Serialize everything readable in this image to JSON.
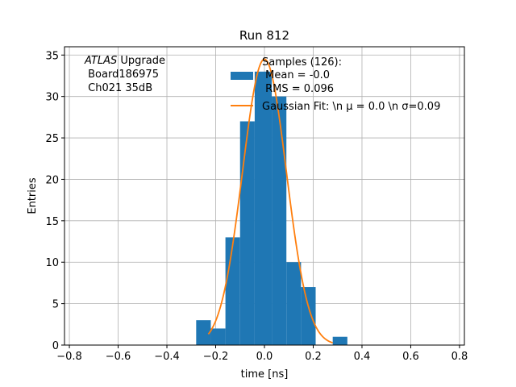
{
  "chart_data": {
    "type": "bar",
    "title": "Run 812",
    "xlabel": "time [ns]",
    "ylabel": "Entries",
    "xlim": [
      -0.82,
      0.82
    ],
    "ylim": [
      0,
      36
    ],
    "xticks": [
      "−0.8",
      "−0.6",
      "−0.4",
      "−0.2",
      "0.0",
      "0.2",
      "0.4",
      "0.6",
      "0.8"
    ],
    "xtick_values": [
      -0.8,
      -0.6,
      -0.4,
      -0.2,
      0.0,
      0.2,
      0.4,
      0.6,
      0.8
    ],
    "yticks": [
      "0",
      "5",
      "10",
      "15",
      "20",
      "25",
      "30",
      "35"
    ],
    "ytick_values": [
      0,
      5,
      10,
      15,
      20,
      25,
      30,
      35
    ],
    "grid": true,
    "annotation": {
      "line1_italic": "ATLAS",
      "line1_rest": " Upgrade",
      "line2": " Board186975",
      "line3": " Ch021 35dB"
    },
    "histogram": {
      "name": "Samples (126):\n Mean = -0.0\n RMS = 0.096",
      "legend_lines": [
        "Samples (126):",
        " Mean = -0.0",
        " RMS = 0.096"
      ],
      "color": "#1f77b4",
      "bins": [
        {
          "x0": -0.28,
          "x1": -0.22,
          "count": 3
        },
        {
          "x0": -0.22,
          "x1": -0.16,
          "count": 2
        },
        {
          "x0": -0.16,
          "x1": -0.1,
          "count": 13
        },
        {
          "x0": -0.1,
          "x1": -0.04,
          "count": 27
        },
        {
          "x0": -0.04,
          "x1": 0.03,
          "count": 33
        },
        {
          "x0": 0.03,
          "x1": 0.09,
          "count": 30
        },
        {
          "x0": 0.09,
          "x1": 0.15,
          "count": 10
        },
        {
          "x0": 0.15,
          "x1": 0.21,
          "count": 7
        },
        {
          "x0": 0.21,
          "x1": 0.28,
          "count": 0
        },
        {
          "x0": 0.28,
          "x1": 0.34,
          "count": 1
        }
      ]
    },
    "fit": {
      "name": "Gaussian Fit: \\n $\\mu$ = 0.0 \\n $\\sigma$=0.09",
      "legend_text": "Gaussian Fit: \\n μ = 0.0 \\n σ=0.09",
      "color": "#ff7f0e",
      "mu": 0.0,
      "sigma": 0.09,
      "amplitude": 34.5,
      "x_range": [
        -0.23,
        0.28
      ]
    },
    "legend_position": "upper center"
  }
}
